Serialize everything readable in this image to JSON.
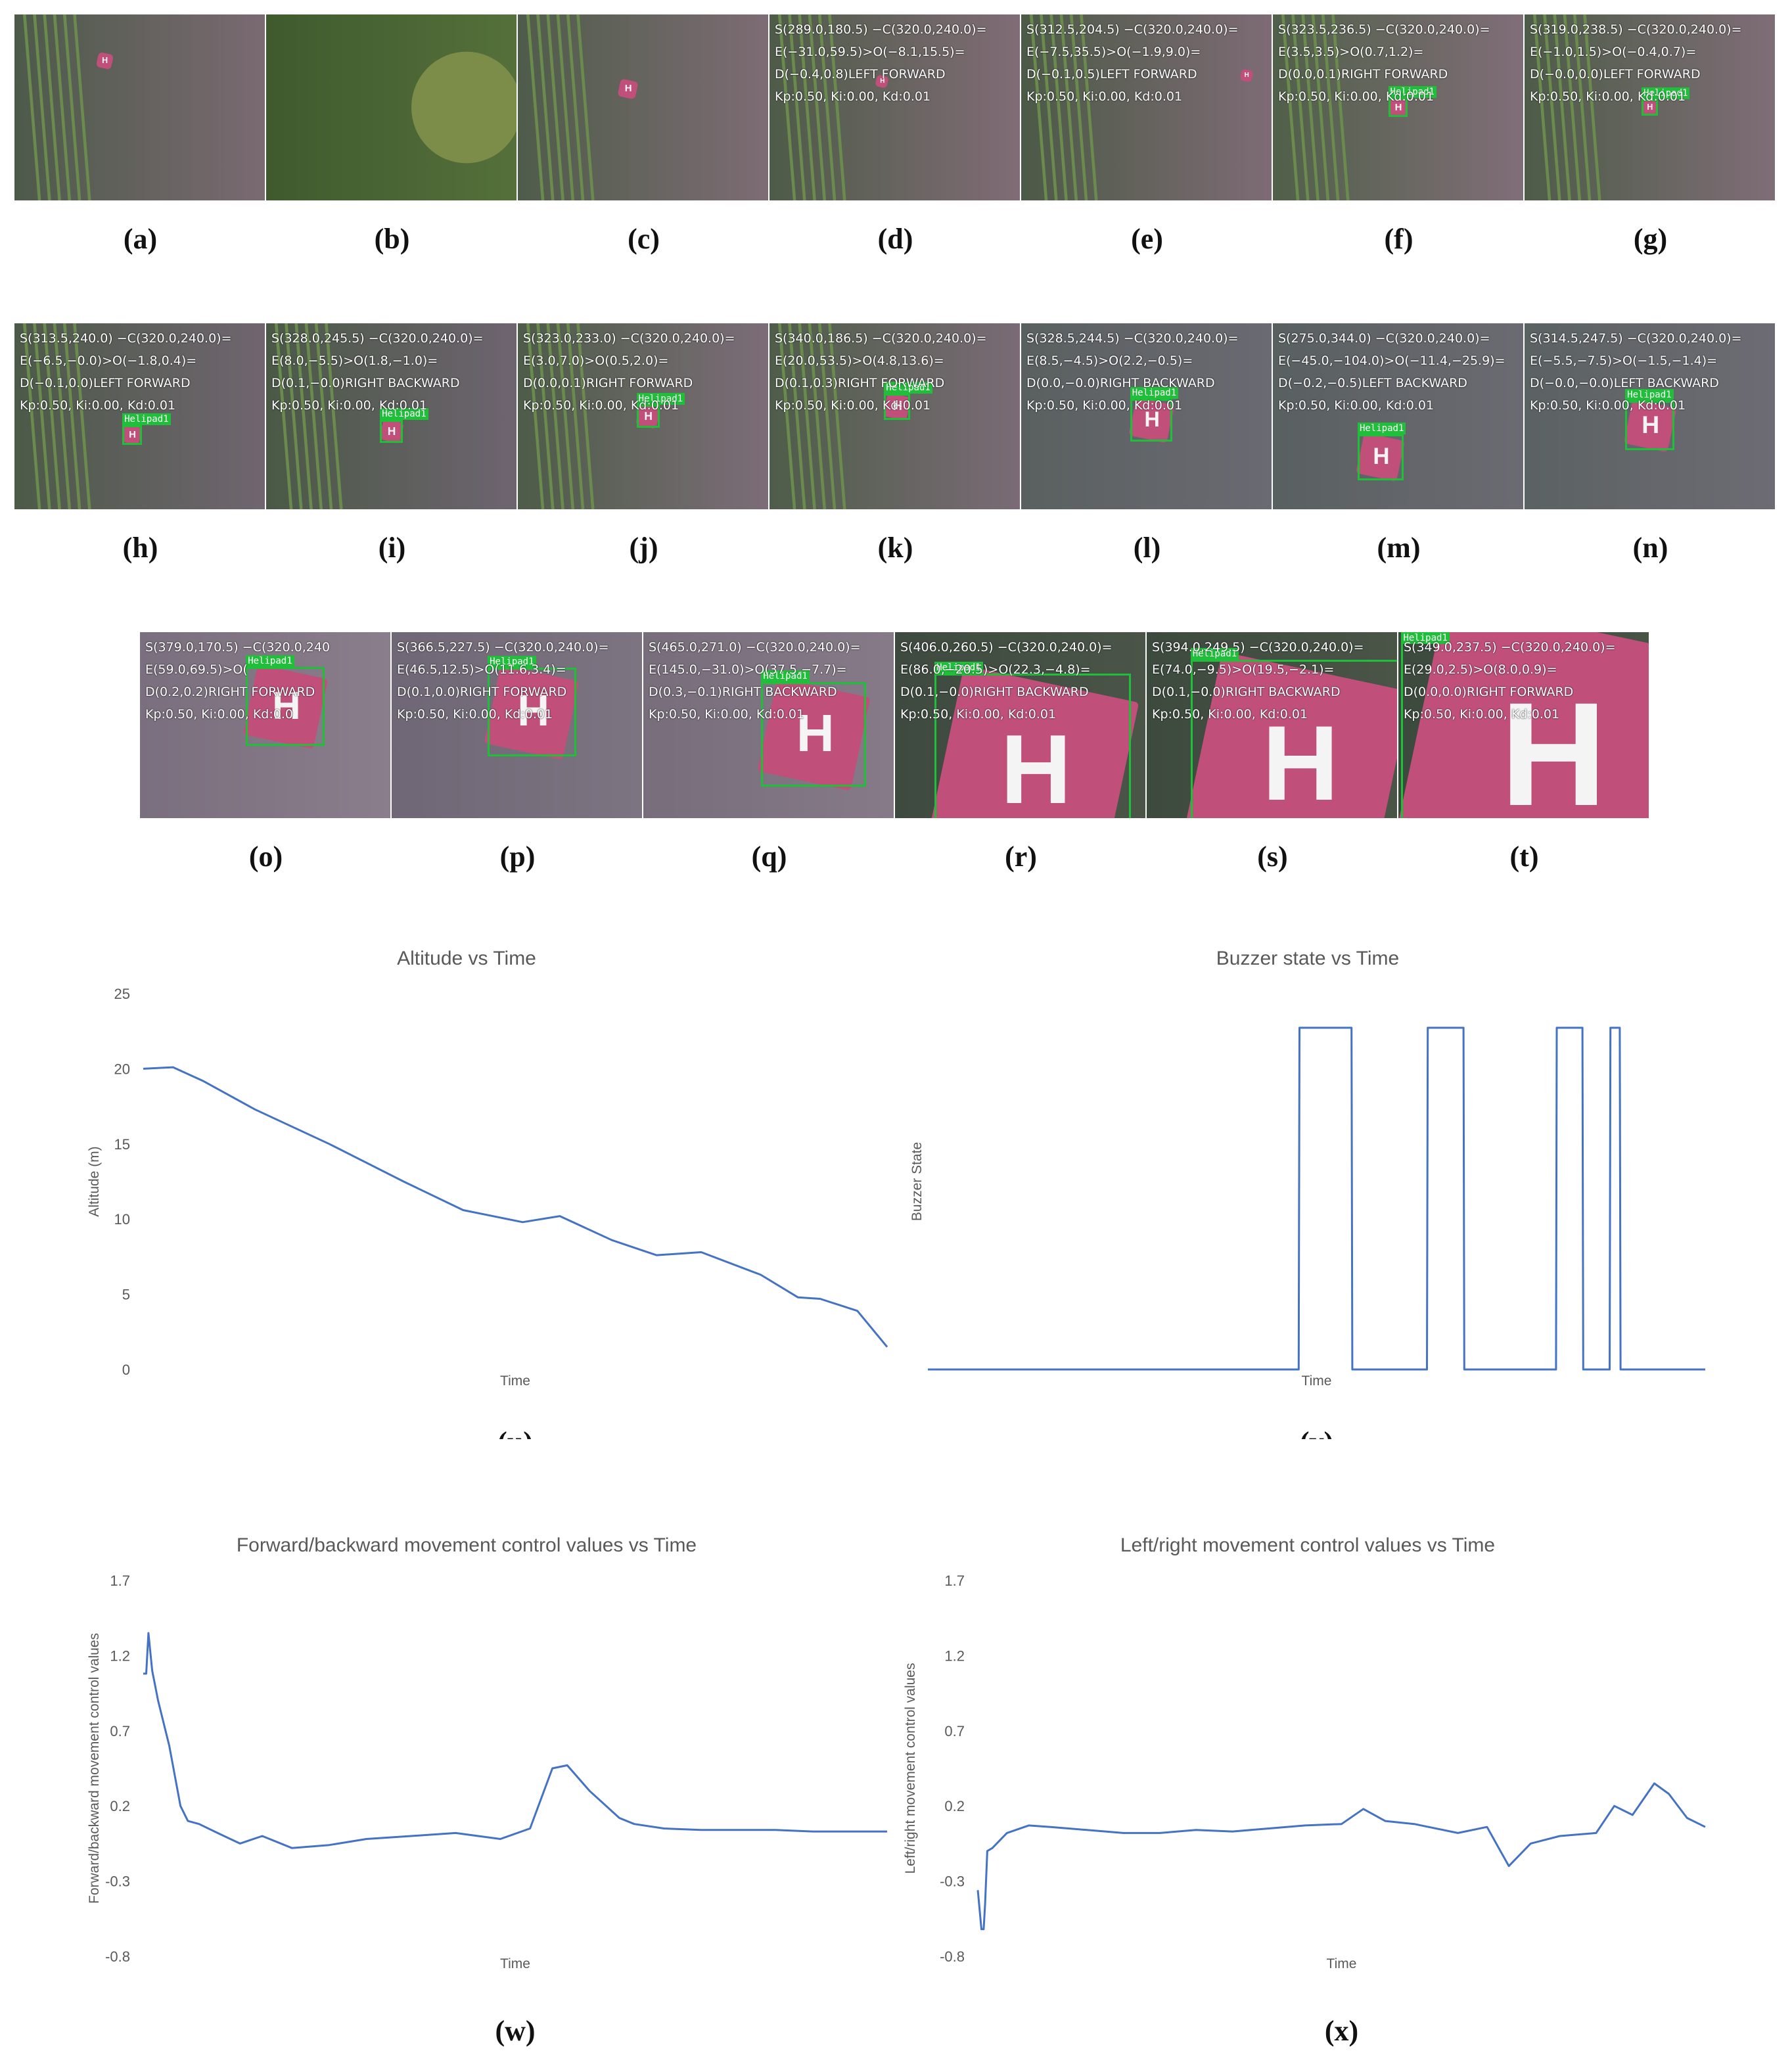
{
  "panels": {
    "a": {
      "label": "(a)",
      "lines": []
    },
    "b": {
      "label": "(b)",
      "lines": []
    },
    "c": {
      "label": "(c)",
      "lines": []
    },
    "d": {
      "label": "(d)",
      "lines": [
        "S(289.0,180.5) −C(320.0,240.0)=",
        "E(−31.0,59.5)>O(−8.1,15.5)=",
        "D(−0.4,0.8)LEFT FORWARD",
        "Kp:0.50, Ki:0.00, Kd:0.01"
      ]
    },
    "e": {
      "label": "(e)",
      "lines": [
        "S(312.5,204.5) −C(320.0,240.0)=",
        "E(−7.5,35.5)>O(−1.9,9.0)=",
        "D(−0.1,0.5)LEFT FORWARD",
        "Kp:0.50, Ki:0.00, Kd:0.01"
      ]
    },
    "f": {
      "label": "(f)",
      "lines": [
        "S(323.5,236.5) −C(320.0,240.0)=",
        "E(3.5,3.5)>O(0.7,1.2)=",
        "D(0.0,0.1)RIGHT FORWARD",
        "Kp:0.50, Ki:0.00, Kd:0.01"
      ]
    },
    "g": {
      "label": "(g)",
      "lines": [
        "S(319.0,238.5) −C(320.0,240.0)=",
        "E(−1.0,1.5)>O(−0.4,0.7)=",
        "D(−0.0,0.0)LEFT FORWARD",
        "Kp:0.50, Ki:0.00, Kd:0.01"
      ]
    },
    "h": {
      "label": "(h)",
      "lines": [
        "S(313.5,240.0) −C(320.0,240.0)=",
        "E(−6.5,−0.0)>O(−1.8,0.4)=",
        "D(−0.1,0.0)LEFT FORWARD",
        "Kp:0.50, Ki:0.00, Kd:0.01"
      ]
    },
    "i": {
      "label": "(i)",
      "lines": [
        "S(328.0,245.5) −C(320.0,240.0)=",
        "E(8.0,−5.5)>O(1.8,−1.0)=",
        "D(0.1,−0.0)RIGHT BACKWARD",
        "Kp:0.50, Ki:0.00, Kd:0.01"
      ]
    },
    "j": {
      "label": "(j)",
      "lines": [
        "S(323.0,233.0) −C(320.0,240.0)=",
        "E(3.0,7.0)>O(0.5,2.0)=",
        "D(0.0,0.1)RIGHT FORWARD",
        "Kp:0.50, Ki:0.00, Kd:0.01"
      ]
    },
    "k": {
      "label": "(k)",
      "lines": [
        "S(340.0,186.5) −C(320.0,240.0)=",
        "E(20.0,53.5)>O(4.8,13.6)=",
        "D(0.1,0.3)RIGHT FORWARD",
        "Kp:0.50, Ki:0.00, Kd:0.01"
      ]
    },
    "l": {
      "label": "(l)",
      "lines": [
        "S(328.5,244.5) −C(320.0,240.0)=",
        "E(8.5,−4.5)>O(2.2,−0.5)=",
        "D(0.0,−0.0)RIGHT BACKWARD",
        "Kp:0.50, Ki:0.00, Kd:0.01"
      ]
    },
    "m": {
      "label": "(m)",
      "lines": [
        "S(275.0,344.0) −C(320.0,240.0)=",
        "E(−45.0,−104.0)>O(−11.4,−25.9)=",
        "D(−0.2,−0.5)LEFT BACKWARD",
        "Kp:0.50, Ki:0.00, Kd:0.01"
      ]
    },
    "n": {
      "label": "(n)",
      "lines": [
        "S(314.5,247.5) −C(320.0,240.0)=",
        "E(−5.5,−7.5)>O(−1.5,−1.4)=",
        "D(−0.0,−0.0)LEFT BACKWARD",
        "Kp:0.50, Ki:0.00, Kd:0.01"
      ]
    },
    "o": {
      "label": "(o)",
      "lines": [
        "S(379.0,170.5) −C(320.0,240",
        "E(59.0,69.5)>O(",
        "D(0.2,0.2)RIGHT FORWARD",
        "Kp:0.50, Ki:0.00, Kd:0.0"
      ]
    },
    "p": {
      "label": "(p)",
      "lines": [
        "S(366.5,227.5) −C(320.0,240.0)=",
        "E(46.5,12.5)>O(11.6,3.4)=",
        "D(0.1,0.0)RIGHT FORWARD",
        "Kp:0.50, Ki:0.00, Kd:0.01"
      ]
    },
    "q": {
      "label": "(q)",
      "lines": [
        "S(465.0,271.0) −C(320.0,240.0)=",
        "E(145.0,−31.0)>O(37.5,−7.7)=",
        "D(0.3,−0.1)RIGHT BACKWARD",
        "Kp:0.50, Ki:0.00, Kd:0.01"
      ]
    },
    "r": {
      "label": "(r)",
      "lines": [
        "S(406.0,260.5) −C(320.0,240.0)=",
        "E(86.0,−20.5)>O(22.3,−4.8)=",
        "D(0.1,−0.0)RIGHT BACKWARD",
        "Kp:0.50, Ki:0.00, Kd:0.01"
      ]
    },
    "s": {
      "label": "(s)",
      "lines": [
        "S(394.0,249.5) −C(320.0,240.0)=",
        "E(74.0,−9.5)>O(19.5,−2.1)=",
        "D(0.1,−0.0)RIGHT BACKWARD",
        "Kp:0.50, Ki:0.00, Kd:0.01"
      ]
    },
    "t": {
      "label": "(t)",
      "lines": [
        "S(349.0,237.5) −C(320.0,240.0)=",
        "E(29.0,2.5)>O(8.0,0.9)=",
        "D(0.0,0.0)RIGHT FORWARD",
        "Kp:0.50, Ki:0.00, Kd:0.01"
      ]
    }
  },
  "detection_tag": "Helipad1",
  "helipad_letter": "H",
  "chart_labels": {
    "u": "(u)",
    "v": "(v)",
    "w": "(w)",
    "x": "(x)"
  },
  "colors": {
    "series": "#4472c4",
    "text": "#595959",
    "pad": "#c0507a",
    "detect": "#1fbf3a"
  },
  "chart_data": [
    {
      "id": "u",
      "type": "line",
      "title": "Altitude vs Time",
      "xlabel": "Time",
      "ylabel": "Altitude (m)",
      "ylim": [
        0,
        25
      ],
      "yticks": [
        0,
        5,
        10,
        15,
        20,
        25
      ],
      "grid": false,
      "legend": "none",
      "series": [
        {
          "x": [
            0,
            0.04,
            0.08,
            0.15,
            0.25,
            0.35,
            0.43,
            0.51,
            0.56,
            0.63,
            0.69,
            0.75,
            0.83,
            0.88,
            0.91,
            0.96,
            1.0
          ],
          "y": [
            20.0,
            20.1,
            19.2,
            17.3,
            15.0,
            12.5,
            10.6,
            9.8,
            10.2,
            8.6,
            7.6,
            7.8,
            6.3,
            4.8,
            4.7,
            3.9,
            1.5
          ]
        }
      ]
    },
    {
      "id": "v",
      "type": "line",
      "title": "Buzzer state vs Time",
      "xlabel": "Time",
      "ylabel": "Buzzer State",
      "ylim": [
        0,
        1.1
      ],
      "yticks": [],
      "grid": false,
      "legend": "none",
      "series": [
        {
          "x": [
            0,
            0.477,
            0.478,
            0.545,
            0.546,
            0.642,
            0.643,
            0.689,
            0.69,
            0.808,
            0.809,
            0.842,
            0.843,
            0.877,
            0.878,
            0.89,
            0.891,
            1.0
          ],
          "y": [
            0,
            0,
            1,
            1,
            0,
            0,
            1,
            1,
            0,
            0,
            1,
            1,
            0,
            0,
            1,
            1,
            0,
            0
          ]
        }
      ]
    },
    {
      "id": "w",
      "type": "line",
      "title": "Forward/backward movement control values vs Time",
      "xlabel": "Time",
      "ylabel": "Forward/backward movement  control values",
      "ylim": [
        -0.8,
        1.7
      ],
      "yticks": [
        -0.8,
        -0.3,
        0.2,
        0.7,
        1.2,
        1.7
      ],
      "grid": false,
      "legend": "none",
      "series": [
        {
          "x": [
            0,
            0.004,
            0.007,
            0.012,
            0.02,
            0.035,
            0.05,
            0.06,
            0.075,
            0.1,
            0.13,
            0.16,
            0.2,
            0.25,
            0.3,
            0.36,
            0.42,
            0.48,
            0.52,
            0.55,
            0.57,
            0.6,
            0.64,
            0.66,
            0.7,
            0.75,
            0.8,
            0.85,
            0.9,
            0.95,
            1.0
          ],
          "y": [
            1.08,
            1.08,
            1.35,
            1.1,
            0.9,
            0.6,
            0.2,
            0.1,
            0.08,
            0.02,
            -0.05,
            0.0,
            -0.08,
            -0.06,
            -0.02,
            0.0,
            0.02,
            -0.02,
            0.05,
            0.45,
            0.47,
            0.3,
            0.12,
            0.08,
            0.05,
            0.04,
            0.04,
            0.04,
            0.03,
            0.03,
            0.03
          ]
        }
      ]
    },
    {
      "id": "x",
      "type": "line",
      "title": "Left/right movement control values vs Time",
      "xlabel": "Time",
      "ylabel": "Left/right movement control values",
      "ylim": [
        -0.8,
        1.7
      ],
      "yticks": [
        -0.8,
        -0.3,
        0.2,
        0.7,
        1.2,
        1.7
      ],
      "grid": false,
      "legend": "none",
      "series": [
        {
          "x": [
            0,
            0.005,
            0.008,
            0.01,
            0.013,
            0.02,
            0.04,
            0.07,
            0.1,
            0.15,
            0.2,
            0.25,
            0.3,
            0.35,
            0.4,
            0.45,
            0.5,
            0.53,
            0.56,
            0.6,
            0.66,
            0.7,
            0.73,
            0.76,
            0.8,
            0.85,
            0.875,
            0.9,
            0.93,
            0.95,
            0.975,
            1.0
          ],
          "y": [
            -0.36,
            -0.62,
            -0.62,
            -0.45,
            -0.1,
            -0.08,
            0.02,
            0.07,
            0.06,
            0.04,
            0.02,
            0.02,
            0.04,
            0.03,
            0.05,
            0.07,
            0.08,
            0.18,
            0.1,
            0.08,
            0.02,
            0.06,
            -0.2,
            -0.05,
            0.0,
            0.02,
            0.2,
            0.14,
            0.35,
            0.28,
            0.12,
            0.06
          ]
        }
      ]
    }
  ]
}
